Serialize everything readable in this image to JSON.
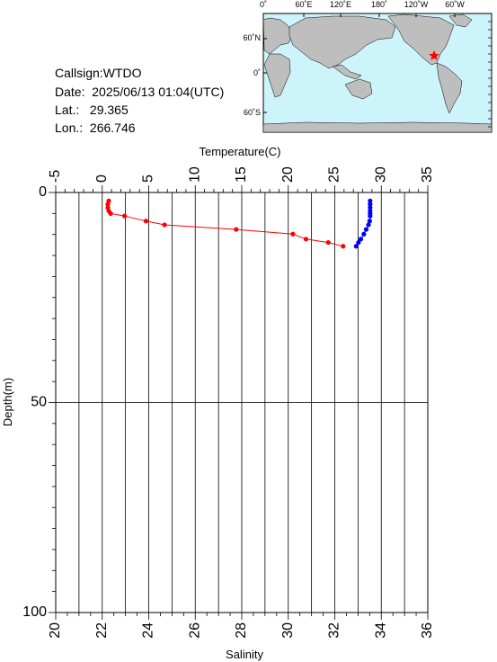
{
  "info": {
    "callsign": "Callsign:WTDO",
    "date": "Date:  2025/06/13 01:04(UTC)",
    "lat": "Lat.:   29.365",
    "lon": "Lon.:  266.746"
  },
  "map": {
    "top_labels": [
      "0˚",
      "60˚E",
      "120˚E",
      "180˚",
      "120˚W",
      "60˚W"
    ],
    "left_labels": [
      "60˚N",
      "0˚",
      "60˚S"
    ],
    "ocean_color": "#ccf4fa",
    "land_color": "#bebebe",
    "marker_color": "#ff0000"
  },
  "chart_data": {
    "type": "line",
    "top_axis_label": "Temperature(C)",
    "bottom_axis_label": "Salinity",
    "ylabel": "Depth(m)",
    "temperature_ticks": [
      "-5",
      "0",
      "5",
      "10",
      "15",
      "20",
      "25",
      "30",
      "35"
    ],
    "salinity_ticks": [
      "20",
      "22",
      "24",
      "26",
      "28",
      "30",
      "32",
      "34",
      "36"
    ],
    "depth_ticks": [
      "0",
      "50",
      "100"
    ],
    "xlim_temperature": [
      -5,
      35
    ],
    "xlim_salinity": [
      20,
      36
    ],
    "ylim_depth": [
      100,
      0
    ],
    "grid": true,
    "series": [
      {
        "color": "#ff0000",
        "axis": "temperature",
        "points": [
          {
            "x": 0.7,
            "y": 2.0
          },
          {
            "x": 0.6,
            "y": 2.8
          },
          {
            "x": 0.6,
            "y": 3.6
          },
          {
            "x": 0.7,
            "y": 4.4
          },
          {
            "x": 0.9,
            "y": 5.0
          },
          {
            "x": 2.4,
            "y": 5.6
          },
          {
            "x": 4.7,
            "y": 6.8
          },
          {
            "x": 6.7,
            "y": 7.7
          },
          {
            "x": 14.4,
            "y": 8.8
          },
          {
            "x": 20.5,
            "y": 9.9
          },
          {
            "x": 21.9,
            "y": 11.1
          },
          {
            "x": 24.3,
            "y": 11.9
          },
          {
            "x": 25.9,
            "y": 12.8
          }
        ]
      },
      {
        "color": "#0000ff",
        "axis": "salinity",
        "points": [
          {
            "x": 33.52,
            "y": 2.0
          },
          {
            "x": 33.52,
            "y": 2.8
          },
          {
            "x": 33.52,
            "y": 3.6
          },
          {
            "x": 33.52,
            "y": 4.4
          },
          {
            "x": 33.52,
            "y": 5.0
          },
          {
            "x": 33.52,
            "y": 5.6
          },
          {
            "x": 33.5,
            "y": 6.8
          },
          {
            "x": 33.45,
            "y": 7.7
          },
          {
            "x": 33.35,
            "y": 8.8
          },
          {
            "x": 33.25,
            "y": 9.9
          },
          {
            "x": 33.12,
            "y": 11.1
          },
          {
            "x": 33.02,
            "y": 11.9
          },
          {
            "x": 32.92,
            "y": 12.8
          }
        ]
      }
    ]
  }
}
